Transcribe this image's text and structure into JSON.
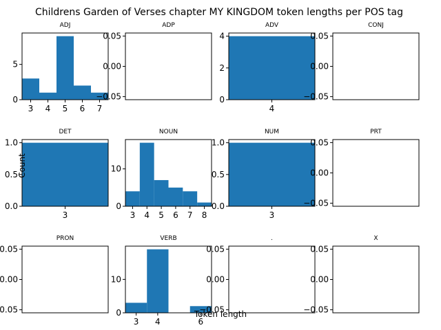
{
  "chart_data": {
    "type": "bar",
    "title": "Childrens Garden of Verses chapter MY KINGDOM token lengths per POS tag",
    "xlabel": "Token length",
    "ylabel": "Count",
    "bar_color": "#1f77b4",
    "panels": [
      {
        "tag": "ADJ",
        "bins": [
          {
            "x0": 2.5,
            "x1": 3.5,
            "count": 3
          },
          {
            "x0": 3.5,
            "x1": 4.5,
            "count": 1
          },
          {
            "x0": 4.5,
            "x1": 5.5,
            "count": 9
          },
          {
            "x0": 5.5,
            "x1": 6.5,
            "count": 2
          },
          {
            "x0": 6.5,
            "x1": 7.5,
            "count": 1
          }
        ],
        "xlim": [
          2.5,
          7.5
        ],
        "ylim": [
          0,
          9.45
        ],
        "xticks": [
          3,
          4,
          5,
          6,
          7
        ],
        "yticks": [
          0,
          5
        ]
      },
      {
        "tag": "ADP",
        "bins": [],
        "xlim": [
          0,
          1
        ],
        "ylim": [
          -0.055,
          0.055
        ],
        "xticks": [],
        "yticks": [
          -0.05,
          0,
          0.05
        ]
      },
      {
        "tag": "ADV",
        "bins": [
          {
            "x0": 3.5,
            "x1": 4.5,
            "count": 4
          }
        ],
        "xlim": [
          3.5,
          4.5
        ],
        "ylim": [
          0,
          4.2
        ],
        "xticks": [
          4
        ],
        "yticks": [
          0,
          2,
          4
        ]
      },
      {
        "tag": "CONJ",
        "bins": [],
        "xlim": [
          0,
          1
        ],
        "ylim": [
          -0.055,
          0.055
        ],
        "xticks": [],
        "yticks": [
          -0.05,
          0,
          0.05
        ]
      },
      {
        "tag": "DET",
        "bins": [
          {
            "x0": 2.5,
            "x1": 3.5,
            "count": 1
          }
        ],
        "xlim": [
          2.5,
          3.5
        ],
        "ylim": [
          0,
          1.05
        ],
        "xticks": [
          3
        ],
        "yticks": [
          0,
          0.5,
          1
        ]
      },
      {
        "tag": "NOUN",
        "bins": [
          {
            "x0": 2.5,
            "x1": 3.5,
            "count": 4
          },
          {
            "x0": 3.5,
            "x1": 4.5,
            "count": 17
          },
          {
            "x0": 4.5,
            "x1": 5.5,
            "count": 7
          },
          {
            "x0": 5.5,
            "x1": 6.5,
            "count": 5
          },
          {
            "x0": 6.5,
            "x1": 7.5,
            "count": 4
          },
          {
            "x0": 7.5,
            "x1": 8.5,
            "count": 1
          }
        ],
        "xlim": [
          2.5,
          8.5
        ],
        "ylim": [
          0,
          17.85
        ],
        "xticks": [
          3,
          4,
          5,
          6,
          7,
          8
        ],
        "yticks": [
          0,
          10
        ]
      },
      {
        "tag": "NUM",
        "bins": [
          {
            "x0": 2.5,
            "x1": 3.5,
            "count": 1
          }
        ],
        "xlim": [
          2.5,
          3.5
        ],
        "ylim": [
          0,
          1.05
        ],
        "xticks": [
          3
        ],
        "yticks": [
          0,
          0.5,
          1
        ]
      },
      {
        "tag": "PRT",
        "bins": [],
        "xlim": [
          0,
          1
        ],
        "ylim": [
          -0.055,
          0.055
        ],
        "xticks": [],
        "yticks": [
          -0.05,
          0,
          0.05
        ]
      },
      {
        "tag": "PRON",
        "bins": [],
        "xlim": [
          0,
          1
        ],
        "ylim": [
          -0.055,
          0.055
        ],
        "xticks": [],
        "yticks": [
          -0.05,
          0,
          0.05
        ]
      },
      {
        "tag": "VERB",
        "bins": [
          {
            "x0": 2.5,
            "x1": 3.5,
            "count": 3
          },
          {
            "x0": 3.5,
            "x1": 4.5,
            "count": 19
          },
          {
            "x0": 5.5,
            "x1": 6.5,
            "count": 2
          }
        ],
        "xlim": [
          2.5,
          6.5
        ],
        "ylim": [
          0,
          19.95
        ],
        "xticks": [
          3,
          4,
          6
        ],
        "yticks": [
          0,
          10
        ]
      },
      {
        "tag": ".",
        "bins": [],
        "xlim": [
          0,
          1
        ],
        "ylim": [
          -0.055,
          0.055
        ],
        "xticks": [],
        "yticks": [
          -0.05,
          0,
          0.05
        ]
      },
      {
        "tag": "X",
        "bins": [],
        "xlim": [
          0,
          1
        ],
        "ylim": [
          -0.055,
          0.055
        ],
        "xticks": [],
        "yticks": [
          -0.05,
          0,
          0.05
        ]
      }
    ]
  }
}
